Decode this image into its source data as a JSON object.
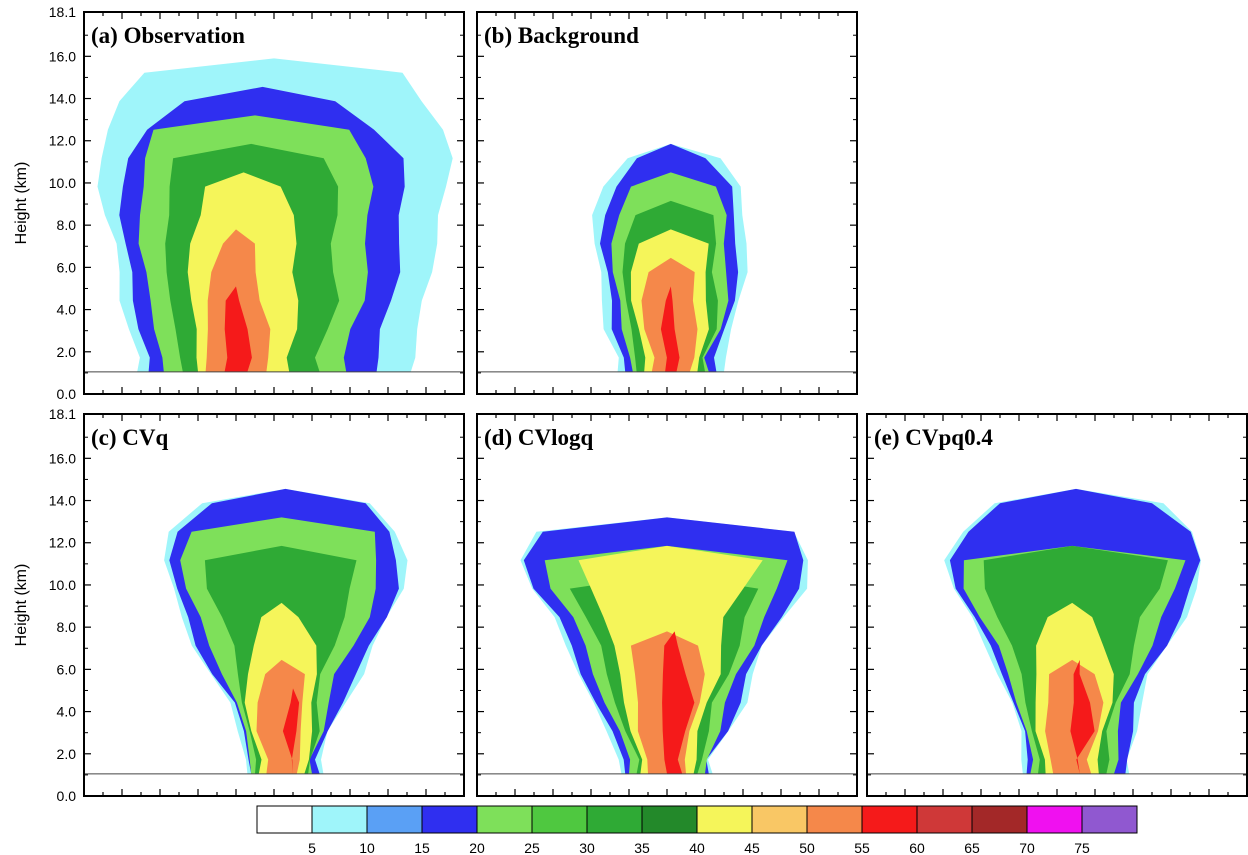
{
  "chart_data": {
    "type": "contour",
    "panels": [
      {
        "id": "a",
        "title": "(a) Observation",
        "contours": [
          {
            "level": 5,
            "color": "#9ff5fa",
            "center": 0.5,
            "half_widths": [
              0.36,
              0.38,
              0.4,
              0.41,
              0.42,
              0.44,
              0.46,
              0.46,
              0.44,
              0.4,
              0.34
            ]
          },
          {
            "level": 15,
            "color": "#2f2ff0",
            "center": 0.47,
            "half_widths": [
              0.3,
              0.32,
              0.34,
              0.35,
              0.36,
              0.37,
              0.37,
              0.36,
              0.3,
              0.2
            ]
          },
          {
            "level": 20,
            "color": "#7ee05a",
            "center": 0.45,
            "half_widths": [
              0.24,
              0.26,
              0.28,
              0.29,
              0.3,
              0.3,
              0.3,
              0.29,
              0.26
            ]
          },
          {
            "level": 30,
            "color": "#2faa35",
            "center": 0.44,
            "half_widths": [
              0.18,
              0.2,
              0.22,
              0.22,
              0.22,
              0.22,
              0.22,
              0.2
            ]
          },
          {
            "level": 40,
            "color": "#f5f55a",
            "center": 0.42,
            "half_widths": [
              0.12,
              0.13,
              0.14,
              0.14,
              0.14,
              0.12,
              0.1
            ]
          },
          {
            "level": 50,
            "color": "#f5884a",
            "center": 0.4,
            "half_widths": [
              0.08,
              0.08,
              0.07,
              0.06,
              0.04
            ]
          },
          {
            "level": 55,
            "color": "#f51a1a",
            "center": 0.4,
            "half_widths": [
              0.03,
              0.03,
              0.02
            ]
          }
        ]
      },
      {
        "id": "b",
        "title": "(b) Background",
        "contours": [
          {
            "level": 5,
            "color": "#9ff5fa",
            "center": 0.51,
            "half_widths": [
              0.14,
              0.17,
              0.18,
              0.19,
              0.2,
              0.2,
              0.18,
              0.12
            ]
          },
          {
            "level": 15,
            "color": "#2f2ff0",
            "center": 0.51,
            "half_widths": [
              0.12,
              0.15,
              0.16,
              0.17,
              0.18,
              0.17,
              0.15,
              0.09
            ]
          },
          {
            "level": 20,
            "color": "#7ee05a",
            "center": 0.51,
            "half_widths": [
              0.1,
              0.13,
              0.14,
              0.15,
              0.15,
              0.14,
              0.11
            ]
          },
          {
            "level": 30,
            "color": "#2faa35",
            "center": 0.51,
            "half_widths": [
              0.09,
              0.11,
              0.12,
              0.12,
              0.12,
              0.1
            ]
          },
          {
            "level": 40,
            "color": "#f5f55a",
            "center": 0.51,
            "half_widths": [
              0.07,
              0.09,
              0.1,
              0.1,
              0.09
            ]
          },
          {
            "level": 50,
            "color": "#f5884a",
            "center": 0.51,
            "half_widths": [
              0.05,
              0.07,
              0.07,
              0.06
            ]
          },
          {
            "level": 55,
            "color": "#f51a1a",
            "center": 0.51,
            "half_widths": [
              0.015,
              0.02,
              0.01
            ]
          }
        ]
      },
      {
        "id": "c",
        "title": "(c) CVq",
        "contours": [
          {
            "level": 5,
            "color": "#9ff5fa",
            "center": 0.53,
            "half_widths": [
              0.1,
              0.12,
              0.15,
              0.2,
              0.24,
              0.27,
              0.3,
              0.32,
              0.3,
              0.22
            ]
          },
          {
            "level": 15,
            "color": "#2f2ff0",
            "center": 0.53,
            "half_widths": [
              0.09,
              0.11,
              0.14,
              0.19,
              0.23,
              0.26,
              0.29,
              0.3,
              0.28,
              0.2
            ]
          },
          {
            "level": 20,
            "color": "#7ee05a",
            "center": 0.52,
            "half_widths": [
              0.08,
              0.1,
              0.12,
              0.15,
              0.19,
              0.22,
              0.25,
              0.26,
              0.24
            ]
          },
          {
            "level": 30,
            "color": "#2faa35",
            "center": 0.52,
            "half_widths": [
              0.07,
              0.09,
              0.1,
              0.11,
              0.13,
              0.16,
              0.19,
              0.2
            ]
          },
          {
            "level": 40,
            "color": "#f5f55a",
            "center": 0.52,
            "half_widths": [
              0.06,
              0.08,
              0.09,
              0.09,
              0.08,
              0.05
            ]
          },
          {
            "level": 50,
            "color": "#f5884a",
            "center": 0.52,
            "half_widths": [
              0.04,
              0.06,
              0.06,
              0.05
            ]
          },
          {
            "level": 55,
            "color": "#f51a1a",
            "center": 0.55,
            "half_widths": [
              0.0,
              0.02,
              0.01
            ]
          }
        ]
      },
      {
        "id": "d",
        "title": "(d) CVlogq",
        "contours": [
          {
            "level": 5,
            "color": "#9ff5fa",
            "center": 0.5,
            "half_widths": [
              0.12,
              0.16,
              0.2,
              0.23,
              0.26,
              0.3,
              0.36,
              0.38,
              0.34
            ]
          },
          {
            "level": 15,
            "color": "#2f2ff0",
            "center": 0.5,
            "half_widths": [
              0.11,
              0.15,
              0.19,
              0.22,
              0.25,
              0.29,
              0.35,
              0.37,
              0.33
            ]
          },
          {
            "level": 20,
            "color": "#7ee05a",
            "center": 0.5,
            "half_widths": [
              0.1,
              0.13,
              0.16,
              0.19,
              0.22,
              0.25,
              0.3,
              0.32
            ]
          },
          {
            "level": 30,
            "color": "#2faa35",
            "center": 0.5,
            "half_widths": [
              0.08,
              0.11,
              0.13,
              0.16,
              0.18,
              0.21,
              0.25
            ]
          },
          {
            "level": 40,
            "color": "#f5f55a",
            "center": 0.5,
            "half_widths": [
              0.07,
              0.09,
              0.11,
              0.13,
              0.14,
              0.16,
              0.2,
              0.24
            ]
          },
          {
            "level": 50,
            "color": "#f5884a",
            "center": 0.5,
            "half_widths": [
              0.05,
              0.07,
              0.08,
              0.09,
              0.09
            ]
          },
          {
            "level": 55,
            "color": "#f51a1a",
            "center": 0.52,
            "half_widths": [
              0.02,
              0.03,
              0.04,
              0.03,
              0.02
            ]
          }
        ]
      },
      {
        "id": "e",
        "title": "(e) CVpq0.4",
        "contours": [
          {
            "level": 5,
            "color": "#9ff5fa",
            "center": 0.55,
            "half_widths": [
              0.14,
              0.15,
              0.17,
              0.2,
              0.24,
              0.28,
              0.32,
              0.34,
              0.3,
              0.22
            ]
          },
          {
            "level": 15,
            "color": "#2f2ff0",
            "center": 0.55,
            "half_widths": [
              0.13,
              0.14,
              0.16,
              0.19,
              0.23,
              0.27,
              0.31,
              0.33,
              0.29,
              0.2
            ]
          },
          {
            "level": 20,
            "color": "#7ee05a",
            "center": 0.54,
            "half_widths": [
              0.11,
              0.12,
              0.14,
              0.17,
              0.2,
              0.24,
              0.28,
              0.29
            ]
          },
          {
            "level": 30,
            "color": "#2faa35",
            "center": 0.54,
            "half_widths": [
              0.09,
              0.1,
              0.12,
              0.14,
              0.16,
              0.19,
              0.23,
              0.24
            ]
          },
          {
            "level": 40,
            "color": "#f5f55a",
            "center": 0.54,
            "half_widths": [
              0.07,
              0.09,
              0.1,
              0.1,
              0.09,
              0.06
            ]
          },
          {
            "level": 50,
            "color": "#f5884a",
            "center": 0.54,
            "half_widths": [
              0.05,
              0.07,
              0.07,
              0.06
            ]
          },
          {
            "level": 55,
            "color": "#f51a1a",
            "center": 0.56,
            "half_widths": [
              0.0,
              0.03,
              0.02,
              0.01
            ]
          }
        ]
      }
    ],
    "y_axis": {
      "label": "Height (km)",
      "ylim": [
        0.0,
        18.1
      ],
      "tick_labels": [
        "0.0",
        "2.0",
        "4.0",
        "6.0",
        "8.0",
        "10.0",
        "12.0",
        "14.0",
        "16.0",
        "18.1"
      ],
      "ground_line": 1.05
    },
    "x_axis": {
      "label": "",
      "tick_labels": []
    },
    "colorbar": {
      "colors": [
        "#ffffff",
        "#9ff5fa",
        "#5aa0f5",
        "#2f2ff0",
        "#7ee05a",
        "#4fc840",
        "#2faa35",
        "#23892a",
        "#f5f55a",
        "#f9c765",
        "#f5884a",
        "#f51a1a",
        "#cf3838",
        "#a32828",
        "#f010f0",
        "#9058d0"
      ],
      "labels": [
        "5",
        "10",
        "15",
        "20",
        "25",
        "30",
        "35",
        "40",
        "45",
        "50",
        "55",
        "60",
        "65",
        "70",
        "75"
      ]
    },
    "grid": false
  }
}
